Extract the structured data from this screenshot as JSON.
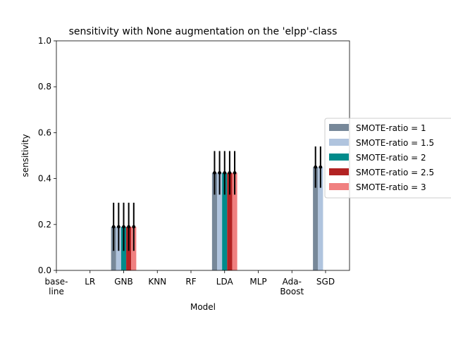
{
  "chart_data": {
    "type": "bar",
    "title": "sensitivity with None augmentation on the 'elpp'-class",
    "xlabel": "Model",
    "ylabel": "sensitivity",
    "ylim": [
      0,
      1.0
    ],
    "yticks": [
      "0.0",
      "0.2",
      "0.4",
      "0.6",
      "0.8",
      "1.0"
    ],
    "categories": [
      [
        "base-",
        "line"
      ],
      [
        "LR"
      ],
      [
        "GNB"
      ],
      [
        "KNN"
      ],
      [
        "RF"
      ],
      [
        "LDA"
      ],
      [
        "MLP"
      ],
      [
        "Ada-",
        "Boost"
      ],
      [
        "SGD"
      ]
    ],
    "grid": false,
    "legend_position": "right",
    "series": [
      {
        "name": "SMOTE-ratio = 1",
        "color": "#778899",
        "values": [
          0,
          0,
          0.19,
          0,
          0,
          0.425,
          0,
          0,
          0.45
        ],
        "errors": [
          0,
          0,
          0.105,
          0,
          0,
          0.095,
          0,
          0,
          0.09
        ]
      },
      {
        "name": "SMOTE-ratio = 1.5",
        "color": "#b0c4de",
        "values": [
          0,
          0,
          0.19,
          0,
          0,
          0.425,
          0,
          0,
          0.45
        ],
        "errors": [
          0,
          0,
          0.105,
          0,
          0,
          0.095,
          0,
          0,
          0.09
        ]
      },
      {
        "name": "SMOTE-ratio = 2",
        "color": "#008b8b",
        "values": [
          0,
          0,
          0.19,
          0,
          0,
          0.425,
          0,
          0,
          0
        ],
        "errors": [
          0,
          0,
          0.105,
          0,
          0,
          0.095,
          0,
          0,
          0
        ]
      },
      {
        "name": "SMOTE-ratio = 2.5",
        "color": "#b22222",
        "values": [
          0,
          0,
          0.19,
          0,
          0,
          0.425,
          0,
          0,
          0
        ],
        "errors": [
          0,
          0,
          0.105,
          0,
          0,
          0.095,
          0,
          0,
          0
        ]
      },
      {
        "name": "SMOTE-ratio = 3",
        "color": "#f08080",
        "values": [
          0,
          0,
          0.19,
          0,
          0,
          0.425,
          0,
          0,
          0
        ],
        "errors": [
          0,
          0,
          0.105,
          0,
          0,
          0.095,
          0,
          0,
          0
        ]
      }
    ]
  }
}
